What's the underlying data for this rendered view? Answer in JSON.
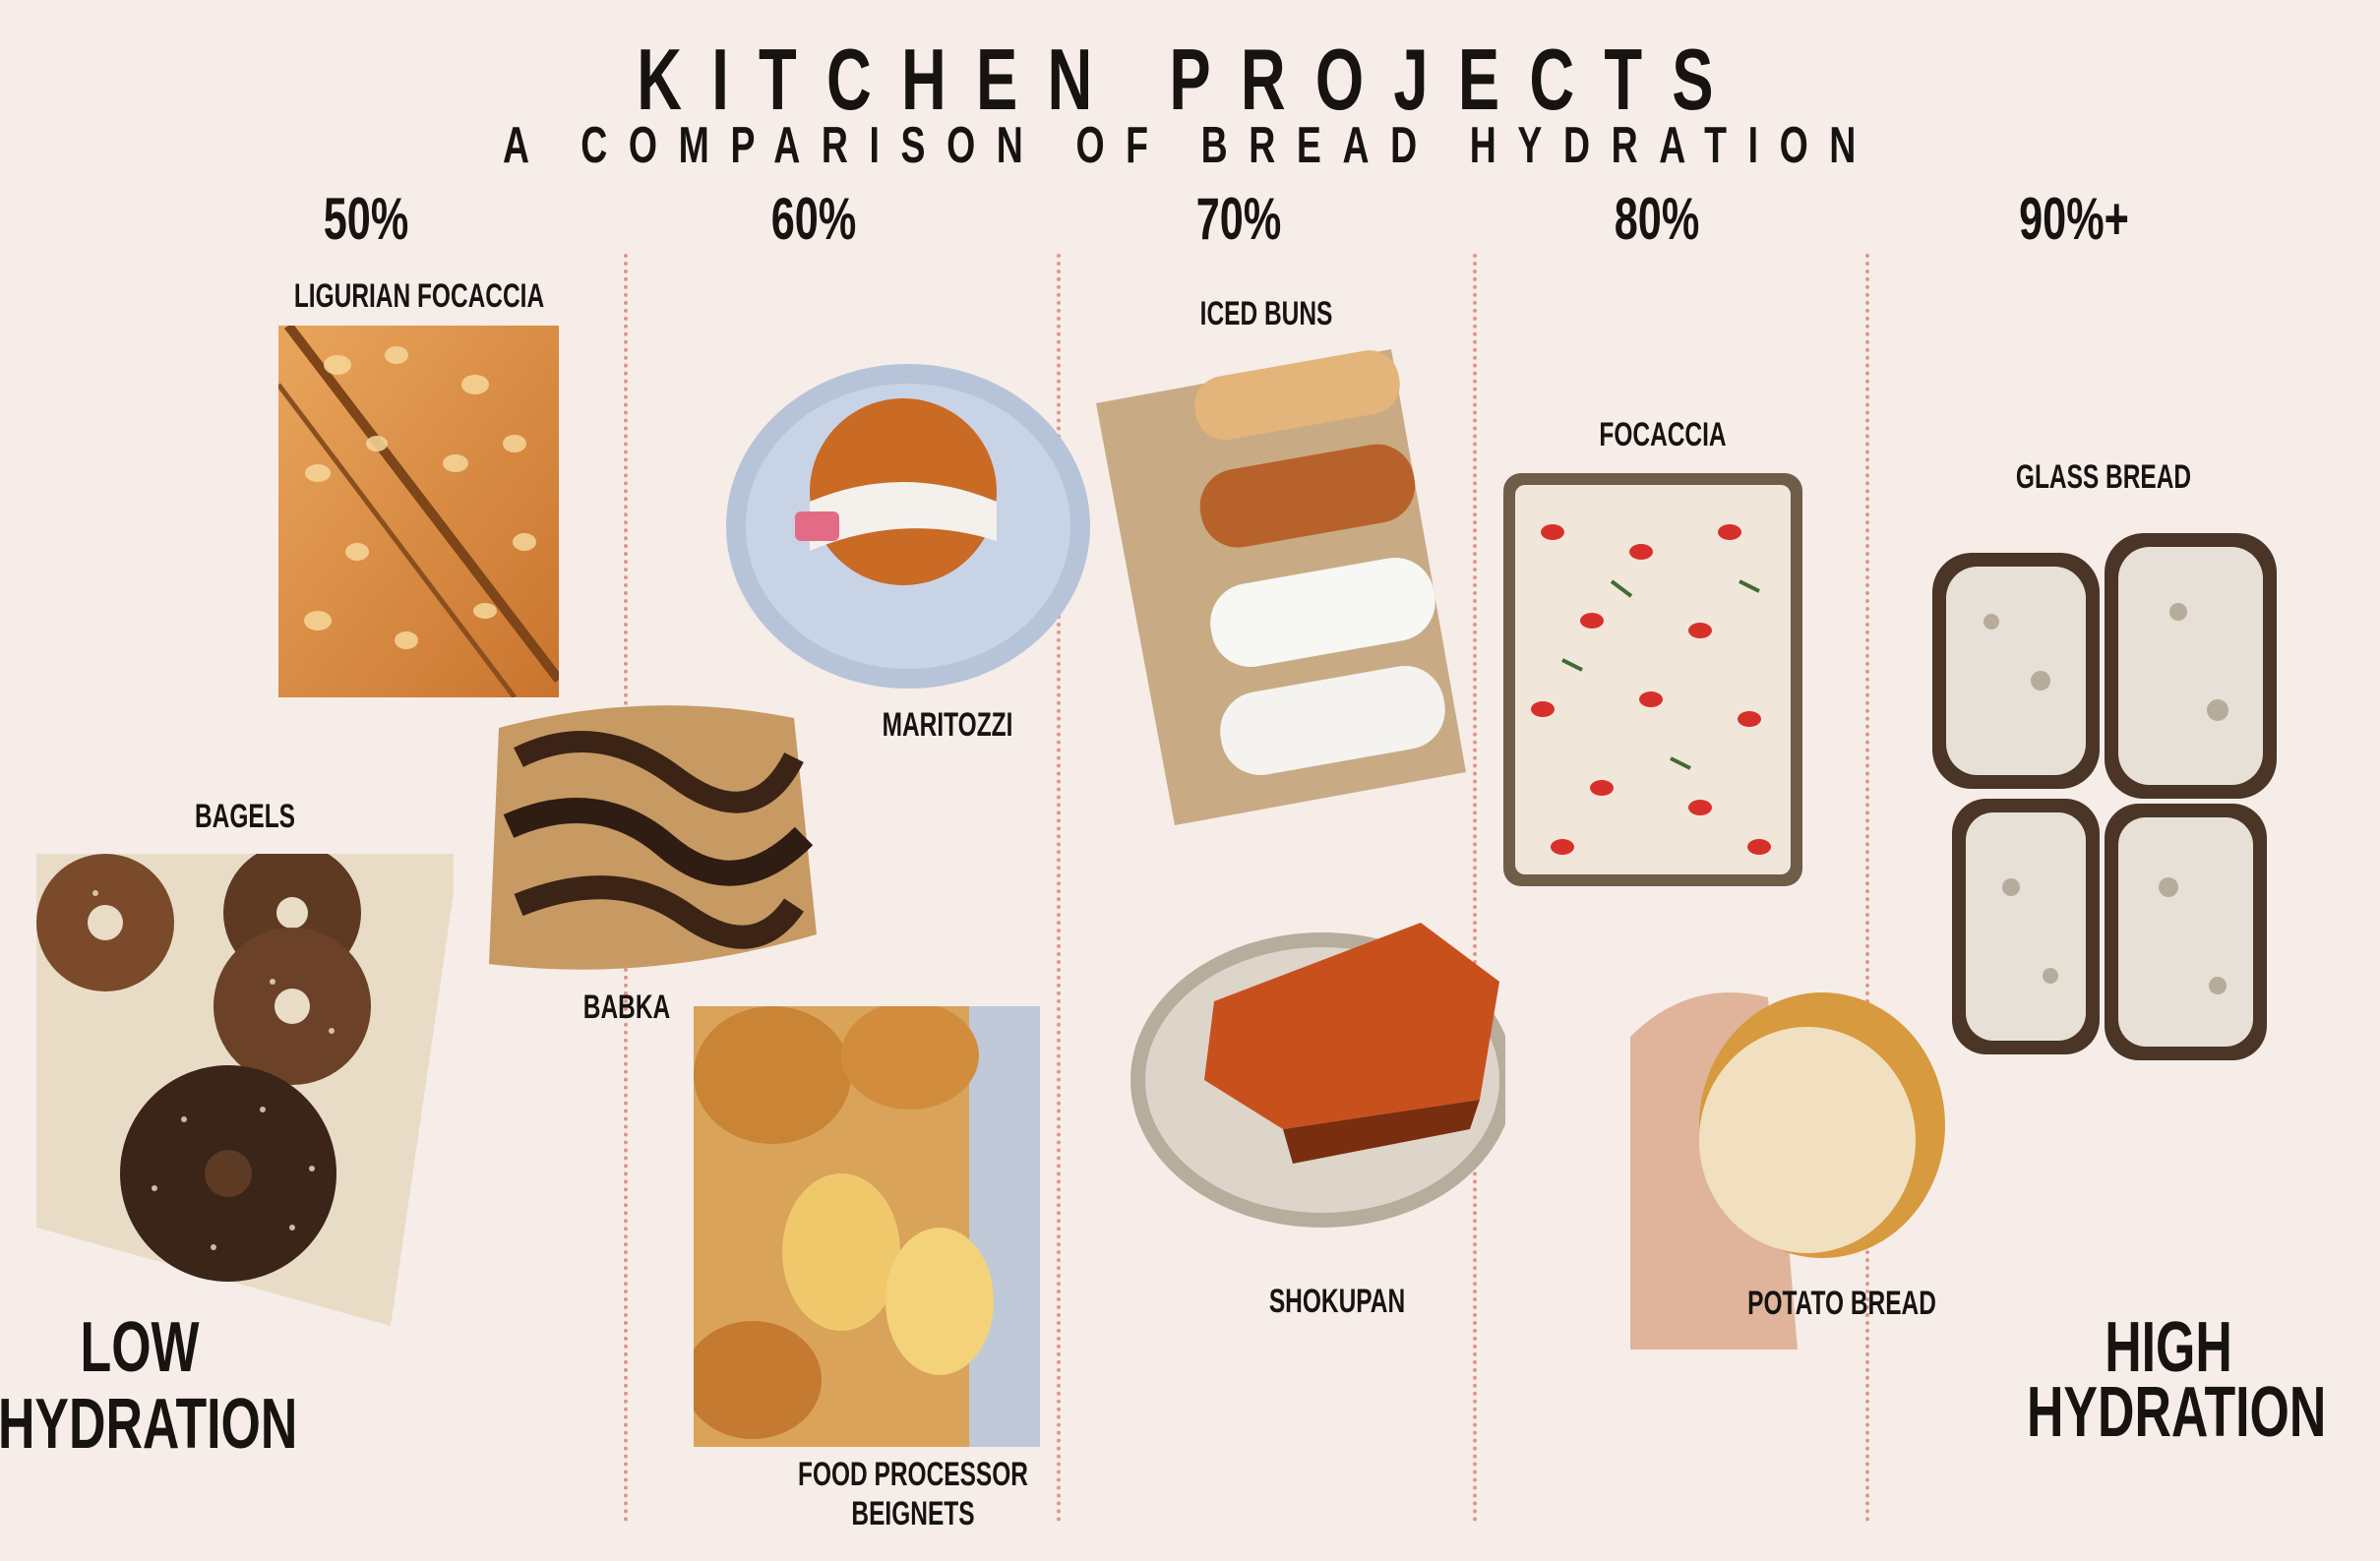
{
  "header": {
    "title": "KITCHEN PROJECTS",
    "subtitle": "A COMPARISON OF BREAD HYDRATION"
  },
  "hydration_levels": [
    "50%",
    "60%",
    "70%",
    "80%",
    "90%+"
  ],
  "breads": {
    "ligurian_focaccia": "LIGURIAN FOCACCIA",
    "bagels": "BAGELS",
    "babka": "BABKA",
    "maritozzi": "MARITOZZI",
    "food_processor_beignets_line1": "FOOD PROCESSOR",
    "food_processor_beignets_line2": "BEIGNETS",
    "iced_buns": "ICED BUNS",
    "shokupan": "SHOKUPAN",
    "focaccia": "FOCACCIA",
    "potato_bread": "POTATO BREAD",
    "glass_bread": "GLASS BREAD"
  },
  "scale_ends": {
    "low_line1": "LOW",
    "low_line2": "HYDRATION",
    "high_line1": "HIGH",
    "high_line2": "HYDRATION"
  },
  "colors": {
    "background": "#f6ede9",
    "divider": "#e3938b",
    "text": "#161311"
  }
}
